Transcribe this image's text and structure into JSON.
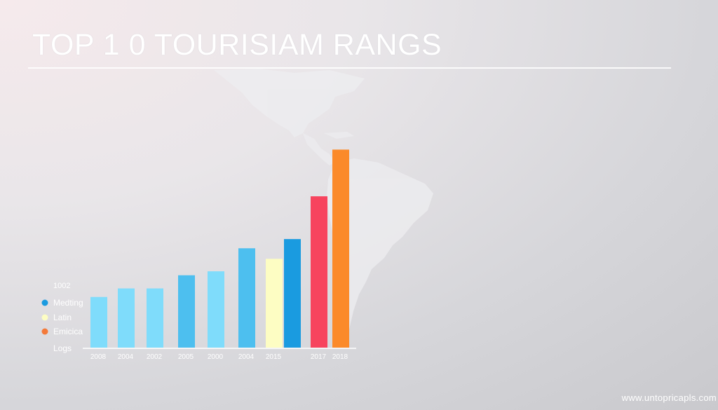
{
  "header": {
    "title": "TOP 1 0 TOURISIAM RANGS"
  },
  "watermark": "www.untopricapls.com",
  "chart_data": {
    "type": "bar",
    "title": "TOP 1 0 TOURISIAM RANGS",
    "xlabel": "",
    "ylabel": "",
    "categories": [
      "2008",
      "2004",
      "2002",
      "2005",
      "2000",
      "2004",
      "2015",
      "",
      "2017",
      "2018"
    ],
    "values": [
      77,
      90,
      90,
      110,
      116,
      151,
      135,
      165,
      230,
      301
    ],
    "bar_colors": [
      "#7fdcfb",
      "#7fdcfb",
      "#7fdcfb",
      "#4dbfef",
      "#7fdcfb",
      "#4dbfef",
      "#fdfdc3",
      "#1a9be0",
      "#f7445e",
      "#fb8a2a"
    ],
    "ylim": [
      0,
      310
    ],
    "grid": false,
    "legend_position": "left",
    "axis_texts": {
      "top": "1002",
      "bottom": "Logs"
    },
    "legend": [
      {
        "name": "Medting",
        "color": "#1a9be0"
      },
      {
        "name": "Latin",
        "color": "#fdfdc3"
      },
      {
        "name": "Emicica",
        "color": "#f47a3a"
      }
    ]
  },
  "map": {
    "fill": "#ededf0"
  }
}
